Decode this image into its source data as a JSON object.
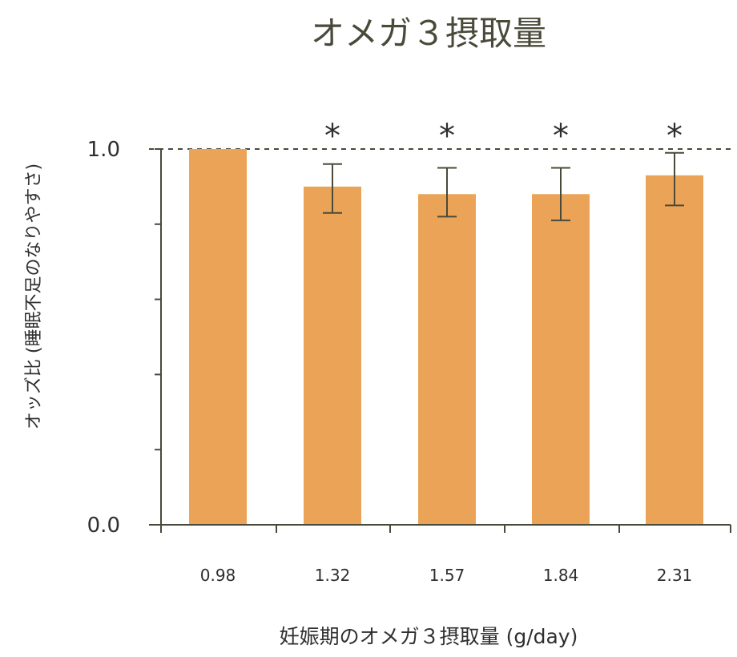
{
  "chart_data": {
    "type": "bar",
    "title": "オメガ３摂取量",
    "xlabel": "妊娠期のオメガ３摂取量 (g/day)",
    "ylabel": "オッズ比 (睡眠不足のなりやすさ)",
    "categories": [
      "0.98",
      "1.32",
      "1.57",
      "1.84",
      "2.31"
    ],
    "values": [
      1.0,
      0.9,
      0.88,
      0.88,
      0.93
    ],
    "error_low": [
      null,
      0.83,
      0.82,
      0.81,
      0.85
    ],
    "error_high": [
      null,
      0.96,
      0.95,
      0.95,
      0.99
    ],
    "significance": [
      "",
      "*",
      "*",
      "*",
      "*"
    ],
    "reference_line": 1.0,
    "ylim": [
      0,
      1.0
    ],
    "yticks": [
      0.0,
      0.2,
      0.4,
      0.6,
      0.8,
      1.0
    ],
    "ytick_labels": [
      "0.0",
      "",
      "",
      "",
      "",
      "1.0"
    ],
    "grid": false,
    "colors": {
      "bar": "#eba457",
      "axis": "#4a4a3a",
      "error": "#4a4a3a"
    }
  }
}
